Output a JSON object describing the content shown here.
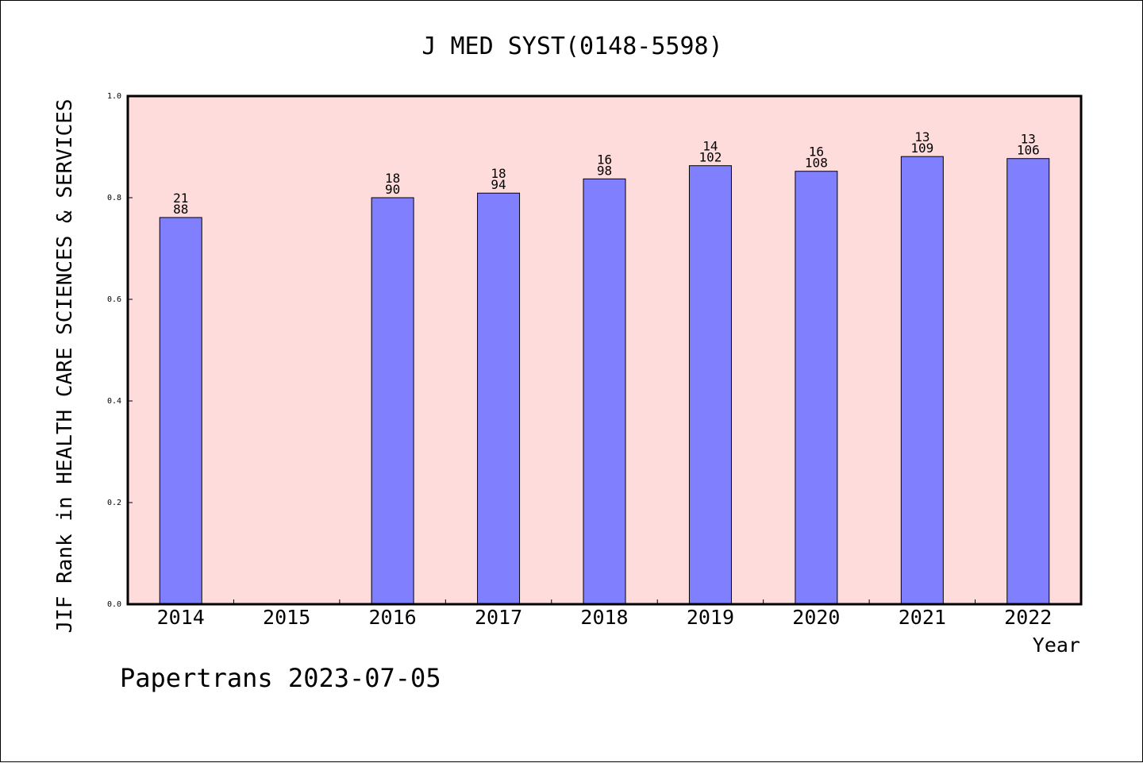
{
  "chart_data": {
    "type": "bar",
    "title": "J MED SYST(0148-5598)",
    "xlabel": "Year",
    "ylabel": "JIF Rank in HEALTH CARE SCIENCES & SERVICES",
    "ylim": [
      0,
      1.0
    ],
    "yticks": [
      "0.0",
      "0.2",
      "0.4",
      "0.6",
      "0.8",
      "1.0"
    ],
    "categories": [
      "2014",
      "2015",
      "2016",
      "2017",
      "2018",
      "2019",
      "2020",
      "2021",
      "2022"
    ],
    "values": [
      0.761,
      null,
      0.8,
      0.809,
      0.837,
      0.863,
      0.852,
      0.881,
      0.877
    ],
    "labels_top": [
      "21",
      "",
      "18",
      "18",
      "16",
      "14",
      "16",
      "13",
      "13"
    ],
    "labels_bottom": [
      "88",
      "",
      "90",
      "94",
      "98",
      "102",
      "108",
      "109",
      "106"
    ],
    "colors": {
      "plot_bg": "#ffdcdc",
      "bar_fill": "#8080ff",
      "bar_edge": "#000000"
    },
    "grid": false,
    "legend": "none"
  },
  "footer": {
    "text": "Papertrans 2023-07-05"
  }
}
